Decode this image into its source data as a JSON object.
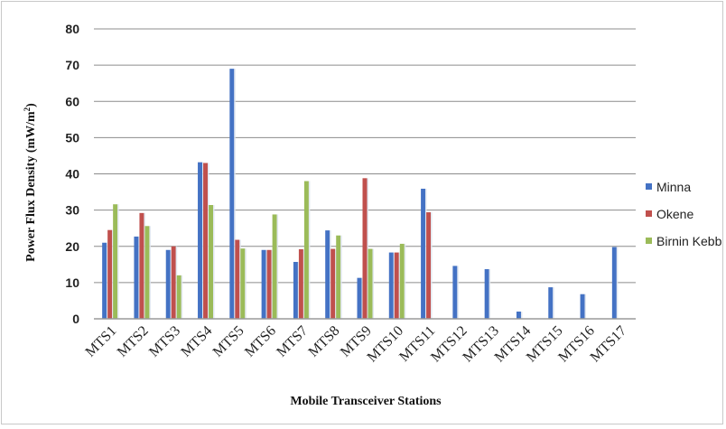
{
  "chart_data": {
    "type": "bar",
    "title": "",
    "xlabel": "Mobile Transceiver Stations",
    "ylabel_main": "Power Flux Density (mW/m",
    "ylabel_sup": "2",
    "ylabel_close": ")",
    "ylim": [
      0,
      80
    ],
    "yticks": [
      "0",
      "10",
      "20",
      "30",
      "40",
      "50",
      "60",
      "70",
      "80"
    ],
    "grid": "horizontal",
    "legend_position": "right",
    "categories": [
      "MTS1",
      "MTS2",
      "MTS3",
      "MTS4",
      "MTS5",
      "MTS6",
      "MTS7",
      "MTS8",
      "MTS9",
      "MTS10",
      "MTS11",
      "MTS12",
      "MTS13",
      "MTS14",
      "MTS15",
      "MTS16",
      "MTS17"
    ],
    "series": [
      {
        "name": "Minna",
        "color": "#4472c4",
        "values": [
          21,
          22.7,
          19,
          43.2,
          69,
          19,
          15.7,
          24.4,
          11.3,
          18.3,
          35.9,
          14.6,
          13.7,
          2,
          8.7,
          6.8,
          19.8
        ]
      },
      {
        "name": "Okene",
        "color": "#c0504d",
        "values": [
          24.5,
          29.2,
          20,
          43,
          21.8,
          19,
          19.2,
          19.3,
          38.8,
          18.3,
          29.4,
          null,
          null,
          null,
          null,
          null,
          null
        ]
      },
      {
        "name": "Birnin Kebbi",
        "legend_text": "Birnin Kebb",
        "color": "#9bbb59",
        "values": [
          31.6,
          25.6,
          12,
          31.4,
          19.4,
          28.8,
          38,
          23,
          19.3,
          20.7,
          null,
          null,
          null,
          null,
          null,
          null,
          null
        ]
      }
    ]
  }
}
